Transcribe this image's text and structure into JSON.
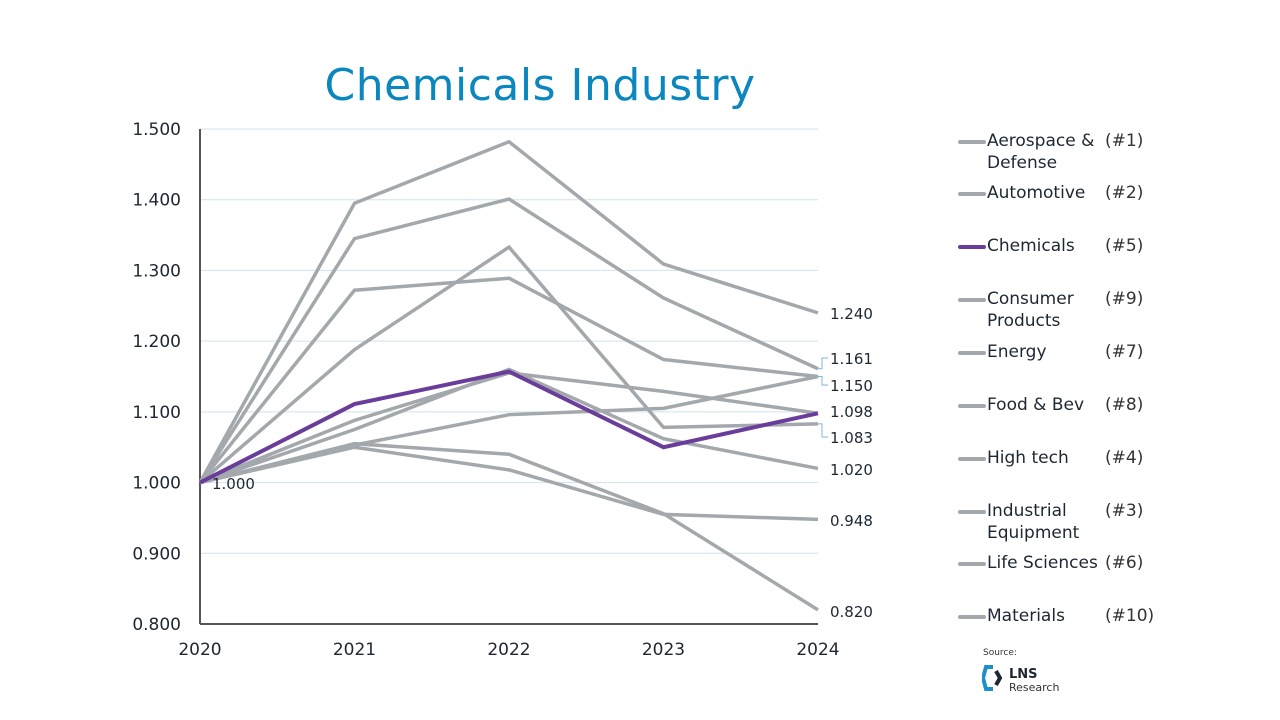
{
  "chart_data": {
    "type": "line",
    "title": "Chemicals Industry",
    "xlabel": "",
    "ylabel": "",
    "x": [
      "2020",
      "2021",
      "2022",
      "2023",
      "2024"
    ],
    "ylim": [
      0.8,
      1.5
    ],
    "yticks": [
      "0.800",
      "0.900",
      "1.000",
      "1.100",
      "1.200",
      "1.300",
      "1.400",
      "1.500"
    ],
    "grid": "horizontal",
    "legend_position": "right",
    "series": [
      {
        "name": "Aerospace & Defense",
        "rank": "(#1)",
        "color": "#a3a8ad",
        "values": [
          1.0,
          1.395,
          1.482,
          1.309,
          1.24
        ]
      },
      {
        "name": "Automotive",
        "rank": "(#2)",
        "color": "#a3a8ad",
        "values": [
          1.0,
          1.345,
          1.401,
          1.261,
          1.161
        ]
      },
      {
        "name": "Chemicals",
        "rank": "(#5)",
        "color": "#6a3d9a",
        "values": [
          1.0,
          1.111,
          1.157,
          1.05,
          1.098
        ]
      },
      {
        "name": "Consumer Products",
        "rank": "(#9)",
        "color": "#a3a8ad",
        "values": [
          1.0,
          1.05,
          1.018,
          0.955,
          0.948
        ]
      },
      {
        "name": "Energy",
        "rank": "(#7)",
        "color": "#a3a8ad",
        "values": [
          1.0,
          1.188,
          1.333,
          1.078,
          1.083
        ]
      },
      {
        "name": "Food & Bev",
        "rank": "(#8)",
        "color": "#a3a8ad",
        "values": [
          1.0,
          1.075,
          1.16,
          1.062,
          1.02
        ]
      },
      {
        "name": "High tech",
        "rank": "(#4)",
        "color": "#a3a8ad",
        "values": [
          1.0,
          1.053,
          1.096,
          1.105,
          1.15
        ]
      },
      {
        "name": "Industrial Equipment",
        "rank": "(#3)",
        "color": "#a3a8ad",
        "values": [
          1.0,
          1.272,
          1.289,
          1.174,
          1.15
        ]
      },
      {
        "name": "Life Sciences",
        "rank": "(#6)",
        "color": "#a3a8ad",
        "values": [
          1.0,
          1.088,
          1.155,
          1.129,
          1.098
        ]
      },
      {
        "name": "Materials",
        "rank": "(#10)",
        "color": "#a3a8ad",
        "values": [
          1.0,
          1.055,
          1.04,
          0.956,
          0.82
        ]
      }
    ],
    "data_labels": [
      "1.000",
      "1.240",
      "1.161",
      "1.150",
      "1.098",
      "1.083",
      "1.020",
      "0.948",
      "0.820"
    ]
  },
  "source": {
    "label": "Source:",
    "logo_text_1": "LNS",
    "logo_text_2": "Research"
  },
  "colors": {
    "title": "#0a87be",
    "highlight": "#6a3d9a",
    "other": "#a3a8ad",
    "grid": "#cfe3ee"
  }
}
